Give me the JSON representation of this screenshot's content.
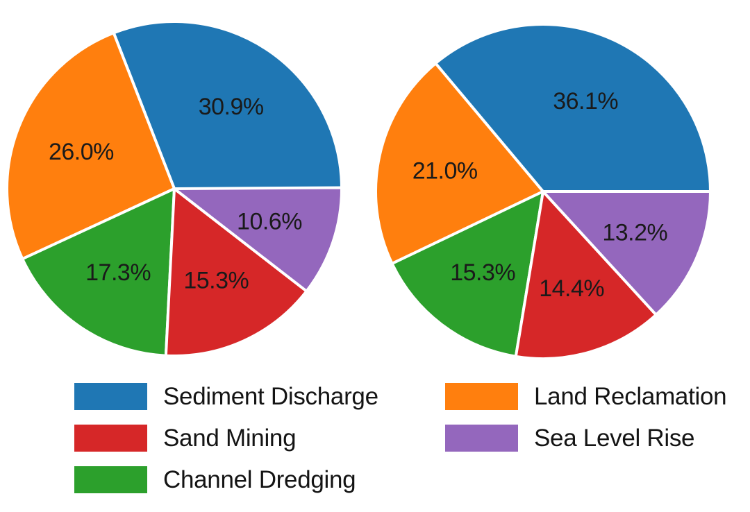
{
  "figure": {
    "background_color": "#ffffff",
    "text_color": "#1a1a1a"
  },
  "chart_data": [
    {
      "type": "pie",
      "position": "left",
      "start_angle_deg": 0,
      "direction": "counterclockwise",
      "slices": [
        {
          "label": "Sediment Discharge",
          "value": 30.9,
          "display": "30.9%",
          "color": "#1f77b4"
        },
        {
          "label": "Land Reclamation",
          "value": 26.0,
          "display": "26.0%",
          "color": "#ff7f0e"
        },
        {
          "label": "Channel Dredging",
          "value": 17.3,
          "display": "17.3%",
          "color": "#2ca02c"
        },
        {
          "label": "Sand Mining",
          "value": 15.3,
          "display": "15.3%",
          "color": "#d62728"
        },
        {
          "label": "Sea Level Rise",
          "value": 10.6,
          "display": "10.6%",
          "color": "#9467bd"
        }
      ],
      "slice_edge_color": "#ffffff"
    },
    {
      "type": "pie",
      "position": "right",
      "start_angle_deg": 0,
      "direction": "counterclockwise",
      "slices": [
        {
          "label": "Sediment Discharge",
          "value": 36.1,
          "display": "36.1%",
          "color": "#1f77b4"
        },
        {
          "label": "Land Reclamation",
          "value": 21.0,
          "display": "21.0%",
          "color": "#ff7f0e"
        },
        {
          "label": "Channel Dredging",
          "value": 15.3,
          "display": "15.3%",
          "color": "#2ca02c"
        },
        {
          "label": "Sand Mining",
          "value": 14.4,
          "display": "14.4%",
          "color": "#d62728"
        },
        {
          "label": "Sea Level Rise",
          "value": 13.2,
          "display": "13.2%",
          "color": "#9467bd"
        }
      ],
      "slice_edge_color": "#ffffff"
    }
  ],
  "legend": {
    "columns": [
      {
        "items": [
          {
            "label": "Sediment Discharge",
            "color": "#1f77b4"
          },
          {
            "label": "Sand Mining",
            "color": "#d62728"
          },
          {
            "label": "Channel Dredging",
            "color": "#2ca02c"
          }
        ]
      },
      {
        "items": [
          {
            "label": "Land Reclamation",
            "color": "#ff7f0e"
          },
          {
            "label": "Sea Level Rise",
            "color": "#9467bd"
          }
        ]
      }
    ]
  }
}
